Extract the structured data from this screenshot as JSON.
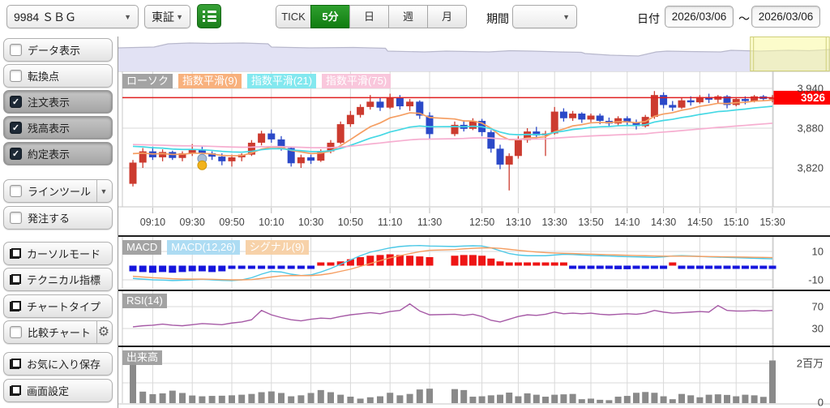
{
  "toolbar": {
    "symbol": "9984 ＳＢＧ",
    "exchange": "東証",
    "timeframes": [
      "TICK",
      "5分",
      "日",
      "週",
      "月"
    ],
    "active_timeframe": "5分",
    "period_label": "期間",
    "date_label": "日付",
    "date_from": "2026/03/06",
    "date_separator": "～",
    "date_to": "2026/03/06"
  },
  "sidebar": {
    "items": [
      {
        "label": "データ表示",
        "checked": false
      },
      {
        "label": "転換点",
        "checked": false
      },
      {
        "label": "注文表示",
        "checked": true
      },
      {
        "label": "残高表示",
        "checked": true
      },
      {
        "label": "約定表示",
        "checked": true
      },
      {
        "label": "ラインツール",
        "checked": false
      },
      {
        "label": "発注する",
        "checked": false
      },
      {
        "label": "カーソルモード"
      },
      {
        "label": "テクニカル指標"
      },
      {
        "label": "チャートタイプ"
      },
      {
        "label": "比較チャート",
        "checked": false
      },
      {
        "label": "お気に入り保存"
      },
      {
        "label": "画面設定"
      }
    ]
  },
  "chart_data": {
    "type": "candlestick",
    "symbol": "9984 ＳＢＧ",
    "interval": "5分",
    "legend_main": [
      "ローソク",
      "指数平滑(9)",
      "指数平滑(21)",
      "指数平滑(75)"
    ],
    "legend_macd": [
      "MACD",
      "MACD(12,26)",
      "シグナル(9)"
    ],
    "legend_rsi": "RSI(14)",
    "legend_volume": "出来高",
    "current_price": {
      "value": 3926,
      "label": "3926"
    },
    "y_axis_main": [
      {
        "label": "3,940",
        "value": 3940
      },
      {
        "label": "3,880",
        "value": 3880
      },
      {
        "label": "3,820",
        "value": 3820
      }
    ],
    "x_labels": [
      {
        "label": "09:10",
        "index": 2
      },
      {
        "label": "09:30",
        "index": 6
      },
      {
        "label": "09:50",
        "index": 10
      },
      {
        "label": "10:10",
        "index": 14
      },
      {
        "label": "10:30",
        "index": 18
      },
      {
        "label": "10:50",
        "index": 22
      },
      {
        "label": "11:10",
        "index": 26
      },
      {
        "label": "11:30",
        "index": 30
      },
      {
        "label": "12:50",
        "index": 34
      },
      {
        "label": "13:10",
        "index": 38
      },
      {
        "label": "13:30",
        "index": 42
      },
      {
        "label": "13:50",
        "index": 46
      },
      {
        "label": "14:10",
        "index": 50
      },
      {
        "label": "14:30",
        "index": 54
      },
      {
        "label": "14:50",
        "index": 58
      },
      {
        "label": "15:10",
        "index": 62
      },
      {
        "label": "15:30",
        "index": 66
      }
    ],
    "session_break_after_index": 30,
    "times": [
      "09:00",
      "09:05",
      "09:10",
      "09:15",
      "09:20",
      "09:25",
      "09:30",
      "09:35",
      "09:40",
      "09:45",
      "09:50",
      "09:55",
      "10:00",
      "10:05",
      "10:10",
      "10:15",
      "10:20",
      "10:25",
      "10:30",
      "10:35",
      "10:40",
      "10:45",
      "10:50",
      "10:55",
      "11:00",
      "11:05",
      "11:10",
      "11:15",
      "11:20",
      "11:25",
      "11:30",
      "12:35",
      "12:40",
      "12:45",
      "12:50",
      "12:55",
      "13:00",
      "13:05",
      "13:10",
      "13:15",
      "13:20",
      "13:25",
      "13:30",
      "13:35",
      "13:40",
      "13:45",
      "13:50",
      "13:55",
      "14:00",
      "14:05",
      "14:10",
      "14:15",
      "14:20",
      "14:25",
      "14:30",
      "14:35",
      "14:40",
      "14:45",
      "14:50",
      "14:55",
      "15:00",
      "15:05",
      "15:10",
      "15:15",
      "15:20",
      "15:25",
      "15:30"
    ],
    "candles": {
      "open": [
        3796,
        3828,
        3845,
        3836,
        3844,
        3835,
        3842,
        3848,
        3842,
        3837,
        3830,
        3836,
        3840,
        3858,
        3872,
        3863,
        3850,
        3827,
        3836,
        3831,
        3845,
        3858,
        3886,
        3900,
        3912,
        3920,
        3911,
        3926,
        3913,
        3920,
        3899,
        3871,
        3885,
        3879,
        3891,
        3874,
        3849,
        3825,
        3838,
        3862,
        3875,
        3869,
        3872,
        3905,
        3895,
        3902,
        3893,
        3899,
        3891,
        3887,
        3895,
        3889,
        3883,
        3897,
        3930,
        3915,
        3911,
        3922,
        3919,
        3927,
        3923,
        3928,
        3915,
        3924,
        3921,
        3928,
        3924
      ],
      "high": [
        3832,
        3850,
        3852,
        3848,
        3846,
        3845,
        3856,
        3852,
        3845,
        3842,
        3840,
        3842,
        3862,
        3876,
        3878,
        3868,
        3852,
        3840,
        3840,
        3848,
        3862,
        3890,
        3906,
        3916,
        3930,
        3926,
        3932,
        3930,
        3924,
        3922,
        3904,
        3890,
        3892,
        3895,
        3894,
        3877,
        3855,
        3842,
        3868,
        3880,
        3882,
        3876,
        3912,
        3910,
        3906,
        3904,
        3902,
        3902,
        3896,
        3898,
        3898,
        3893,
        3900,
        3936,
        3934,
        3921,
        3926,
        3928,
        3930,
        3932,
        3930,
        3930,
        3926,
        3928,
        3930,
        3930,
        3930
      ],
      "low": [
        3792,
        3820,
        3832,
        3830,
        3832,
        3830,
        3838,
        3838,
        3832,
        3824,
        3822,
        3830,
        3838,
        3854,
        3858,
        3846,
        3822,
        3820,
        3826,
        3829,
        3842,
        3856,
        3882,
        3896,
        3908,
        3906,
        3909,
        3908,
        3906,
        3894,
        3864,
        3868,
        3875,
        3877,
        3868,
        3843,
        3818,
        3786,
        3834,
        3858,
        3864,
        3838,
        3870,
        3890,
        3891,
        3888,
        3889,
        3886,
        3882,
        3884,
        3884,
        3878,
        3881,
        3894,
        3910,
        3906,
        3909,
        3914,
        3917,
        3918,
        3917,
        3910,
        3913,
        3916,
        3919,
        3921,
        3919
      ],
      "close": [
        3828,
        3845,
        3836,
        3844,
        3835,
        3842,
        3848,
        3842,
        3837,
        3830,
        3836,
        3840,
        3858,
        3872,
        3863,
        3850,
        3827,
        3836,
        3831,
        3845,
        3858,
        3886,
        3900,
        3912,
        3920,
        3911,
        3926,
        3913,
        3920,
        3899,
        3871,
        3885,
        3879,
        3891,
        3874,
        3849,
        3825,
        3838,
        3862,
        3875,
        3869,
        3872,
        3905,
        3895,
        3902,
        3893,
        3899,
        3891,
        3887,
        3895,
        3889,
        3883,
        3897,
        3930,
        3915,
        3911,
        3922,
        3919,
        3927,
        3923,
        3928,
        3915,
        3924,
        3921,
        3928,
        3924,
        3926
      ]
    },
    "overlays": [
      {
        "name": "指数平滑(9)",
        "period": 9,
        "seed": 3845,
        "color_key": "ema9"
      },
      {
        "name": "指数平滑(21)",
        "period": 21,
        "seed": 3855,
        "color_key": "ema21"
      },
      {
        "name": "指数平滑(75)",
        "period": 75,
        "seed": 3856,
        "color_key": "ema75"
      }
    ],
    "macd": {
      "axis": [
        {
          "label": "10",
          "value": 10
        },
        {
          "label": "-10",
          "value": -10
        }
      ],
      "line": [
        -9,
        -9.5,
        -10,
        -10.2,
        -10.5,
        -10.3,
        -10,
        -9.6,
        -10,
        -10.4,
        -10.5,
        -10,
        -8.5,
        -6,
        -4,
        -4.5,
        -6,
        -7,
        -6.5,
        -4.5,
        -2,
        1,
        4,
        7,
        9.5,
        11,
        12.5,
        13.5,
        14,
        14.2,
        13.8,
        13.5,
        13.8,
        14,
        13.8,
        12.5,
        10.5,
        8.5,
        7.5,
        7,
        7,
        7,
        7.5,
        8,
        7.8,
        7.5,
        7.2,
        7,
        6.8,
        6.5,
        6.3,
        6.2,
        6,
        5.8,
        6.2,
        6.8,
        7,
        6.8,
        6.5,
        6.2,
        6,
        5.8,
        5.6,
        5.4,
        5.2,
        5,
        4.8
      ],
      "signal": [
        -7.5,
        -8,
        -8.5,
        -8.8,
        -9.2,
        -9.4,
        -9.5,
        -9.5,
        -9.6,
        -9.8,
        -10,
        -10,
        -9.8,
        -9,
        -8,
        -7.2,
        -7,
        -7,
        -7,
        -6.5,
        -5.5,
        -4,
        -2.5,
        -0.5,
        1.5,
        3.5,
        5.5,
        7,
        8.5,
        9.8,
        10.8,
        11.3,
        11.8,
        12.2,
        12.5,
        12.5,
        12.2,
        11.5,
        10.8,
        10.2,
        9.6,
        9.2,
        8.9,
        8.7,
        8.5,
        8.3,
        8.1,
        7.9,
        7.7,
        7.5,
        7.3,
        7.1,
        7,
        6.8,
        6.7,
        6.7,
        6.7,
        6.6,
        6.5,
        6.4,
        6.3,
        6.2,
        6.1,
        6,
        5.9,
        5.8,
        5.7
      ],
      "histogram": [
        -4,
        -4.5,
        -5,
        -4.5,
        -5,
        -4.5,
        -4,
        -4,
        -4.5,
        -4,
        -2,
        -1.5,
        -1.5,
        -1.5,
        -1.5,
        -1.5,
        -1.5,
        -2,
        -1.5,
        1.5,
        2,
        3,
        4.5,
        6,
        7,
        7.5,
        8,
        7.5,
        7,
        6.5,
        6,
        7,
        7.5,
        7.5,
        7,
        5,
        3,
        2,
        1.5,
        1.5,
        1.5,
        1.5,
        1.5,
        1.5,
        -1.5,
        -2,
        -2,
        -1.5,
        -2,
        -2.5,
        -2.5,
        -2,
        -1.5,
        -1.5,
        -2,
        1.2,
        -1.5,
        -2,
        -2,
        -1.5,
        -1.5,
        -2,
        -1.5,
        -1.5,
        -1.5,
        -1.5,
        -1.5
      ]
    },
    "rsi": {
      "axis": [
        {
          "label": "70",
          "value": 70
        },
        {
          "label": "30",
          "value": 30
        }
      ],
      "values": [
        33,
        35,
        36,
        38,
        36,
        35,
        37,
        39,
        38,
        37,
        40,
        42,
        46,
        63,
        55,
        50,
        46,
        44,
        47,
        49,
        48,
        52,
        55,
        57,
        59,
        57,
        61,
        63,
        75,
        62,
        55,
        56,
        54,
        56,
        52,
        45,
        42,
        47,
        52,
        55,
        54,
        56,
        60,
        57,
        58,
        57,
        58,
        56,
        55,
        56,
        57,
        56,
        58,
        63,
        60,
        58,
        59,
        60,
        61,
        60,
        72,
        63,
        62,
        62,
        63,
        62,
        63
      ]
    },
    "volume": {
      "axis": [
        {
          "label": "2百万",
          "value": 2000000
        },
        {
          "label": "0",
          "value": 0
        }
      ],
      "values": [
        2250000,
        550000,
        420000,
        460000,
        600000,
        480000,
        350000,
        310000,
        330000,
        340000,
        360000,
        390000,
        430000,
        520000,
        560000,
        480000,
        310000,
        360000,
        480000,
        630000,
        520000,
        390000,
        290000,
        190000,
        260000,
        310000,
        490000,
        360000,
        430000,
        660000,
        700000,
        680000,
        630000,
        290000,
        310000,
        360000,
        390000,
        500000,
        310000,
        460000,
        390000,
        290000,
        390000,
        410000,
        430000,
        160000,
        190000,
        130000,
        110000,
        290000,
        330000,
        490000,
        530000,
        490000,
        310000,
        160000,
        430000,
        360000,
        260000,
        390000,
        410000,
        380000,
        310000,
        390000,
        360000,
        280000,
        2150000
      ]
    },
    "markers": [
      {
        "index": 7,
        "price": 3834,
        "color": "#a9bdd6",
        "edge": "#7d96b8",
        "name": "balance-marker"
      },
      {
        "index": 7,
        "price": 3824,
        "color": "#f2b31c",
        "edge": "#cf990c",
        "name": "execution-marker"
      }
    ],
    "navigator": {
      "points": [
        [
          0,
          14
        ],
        [
          0.05,
          13
        ],
        [
          0.07,
          9
        ],
        [
          0.1,
          8
        ],
        [
          0.13,
          8.5
        ],
        [
          0.175,
          8
        ],
        [
          0.21,
          9
        ],
        [
          0.215,
          13
        ],
        [
          0.27,
          14
        ],
        [
          0.33,
          13.5
        ],
        [
          0.375,
          14.5
        ],
        [
          0.378,
          18
        ],
        [
          0.43,
          19
        ],
        [
          0.46,
          18
        ],
        [
          0.52,
          19
        ],
        [
          0.55,
          17.5
        ],
        [
          0.58,
          18
        ],
        [
          0.62,
          19
        ],
        [
          0.65,
          19.5
        ],
        [
          0.655,
          21
        ],
        [
          0.69,
          23
        ],
        [
          0.73,
          24
        ],
        [
          0.755,
          19
        ],
        [
          0.77,
          18
        ],
        [
          0.8,
          18.5
        ],
        [
          0.845,
          19
        ],
        [
          0.86,
          17
        ],
        [
          0.9,
          18
        ],
        [
          0.94,
          17
        ],
        [
          0.97,
          17.5
        ],
        [
          1,
          16
        ]
      ],
      "selection": [
        0.887,
        0.998
      ]
    },
    "colors": {
      "up": "#cc3b2f",
      "down": "#2b49c8",
      "ema9": "#f59e62",
      "ema21": "#45d8e4",
      "ema75": "#f6aed0",
      "price_line": "#e02020",
      "price_badge": "#fe0000",
      "macd_line": "#4cc8e6",
      "macd_signal": "#f59e62",
      "hist_pos": "#ee1515",
      "hist_neg": "#1515dd",
      "rsi_line": "#a65aa6",
      "volume_bar": "#8a8a8a",
      "nav_fill": "#e2e2f4",
      "nav_stroke": "#b8b8cc",
      "grid": "#d9d9d9",
      "axis_text": "#444444",
      "chip_gray": "#9c9c9c",
      "chip_orange": "#f8ab72",
      "chip_cyan": "#79e7ee",
      "chip_pink": "#f9c3da",
      "chip_lightblue": "#a7daf2",
      "chip_lightorange": "#f7cfa2"
    }
  }
}
